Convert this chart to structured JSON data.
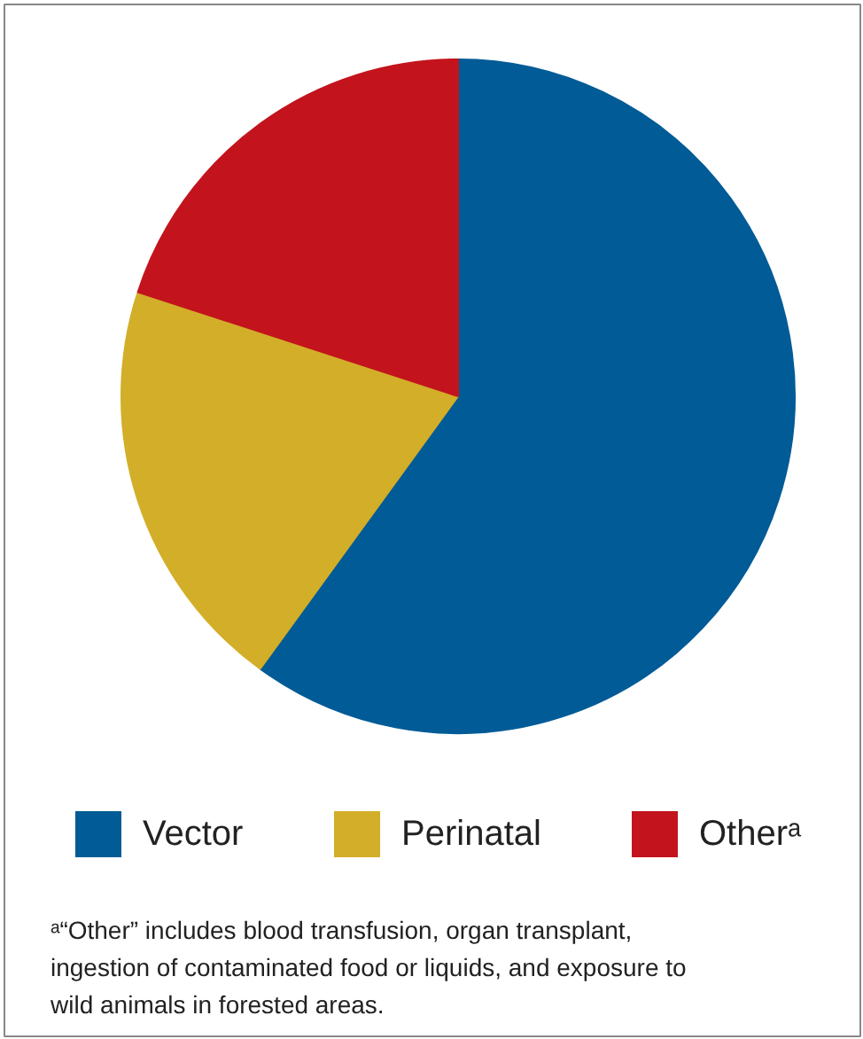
{
  "chart_data": {
    "type": "pie",
    "categories": [
      "Vector",
      "Perinatal",
      "Otherᵃ"
    ],
    "values": [
      60,
      20,
      20
    ],
    "colors": [
      "#005b97",
      "#d3ae29",
      "#c3141d"
    ],
    "legend": "bottom",
    "annotations": [
      "ᵃ“Other” includes blood transfusion, organ transplant, ingestion of contaminated food or liquids, and exposure to wild animals in forested areas."
    ]
  }
}
